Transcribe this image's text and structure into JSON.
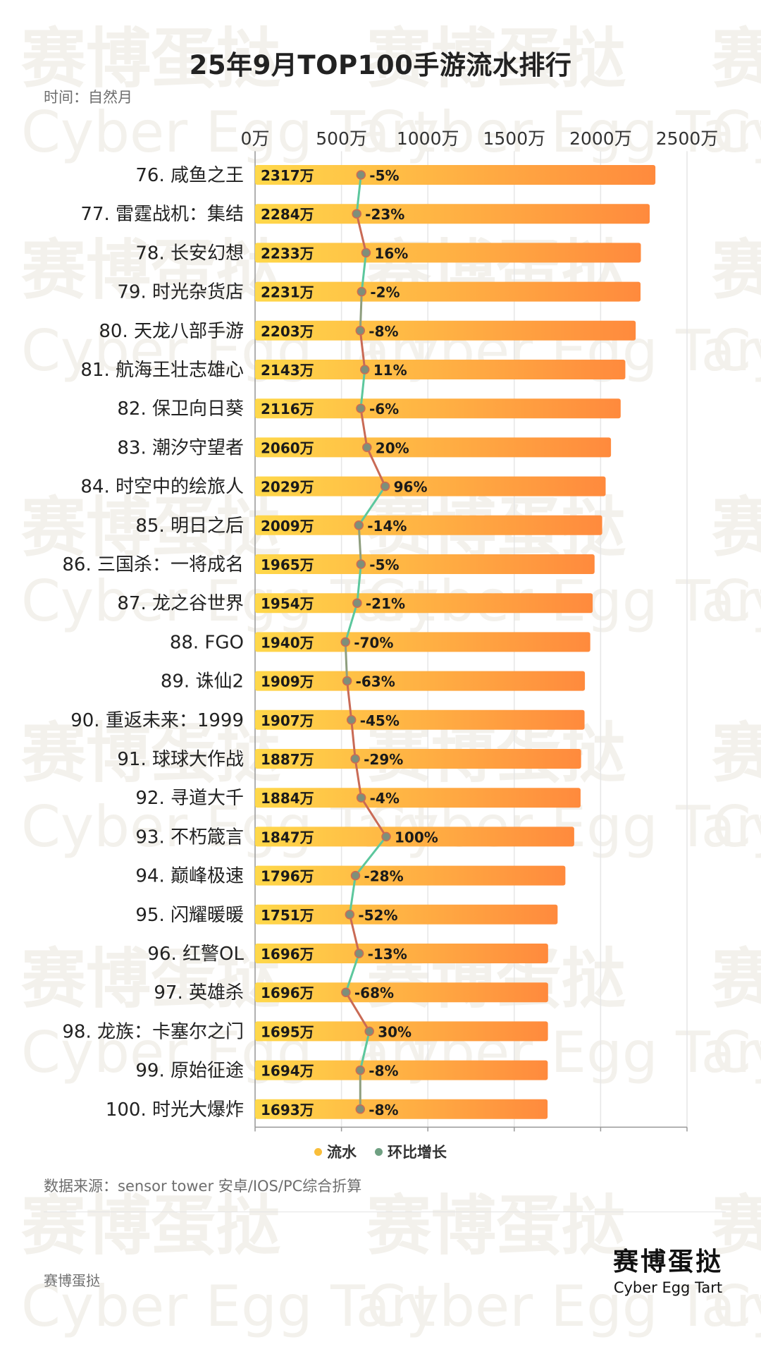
{
  "title": "25年9月TOP100手游流水排行",
  "subtitle": "时间：自然月",
  "source": "数据来源：sensor tower 安卓/IOS/PC综合折算",
  "brand": {
    "left_text": "赛博蛋挞",
    "logo_cn": "赛博蛋挞",
    "logo_en": "Cyber Egg Tart"
  },
  "watermark": {
    "cn": "赛博蛋挞",
    "en": "Cyber Egg Tart"
  },
  "legend": [
    {
      "label": "流水",
      "color": "#F9BE3A"
    },
    {
      "label": "环比增长",
      "color": "#6FA082"
    }
  ],
  "colors": {
    "bar_start": "#FFD84A",
    "bar_end": "#FF8A3D",
    "line_up": "#C96A55",
    "line_down": "#5CC79D",
    "line_flat": "#8E9E7E",
    "dot": "#7E8F7A"
  },
  "chart_data": {
    "type": "bar",
    "orientation": "horizontal",
    "x_unit": "万",
    "xlim": [
      0,
      2500
    ],
    "x_ticks": [
      0,
      500,
      1000,
      1500,
      2000,
      2500
    ],
    "x_tick_labels": [
      "0万",
      "500万",
      "1000万",
      "1500万",
      "2000万",
      "2500万"
    ],
    "categories": [
      "76. 咸鱼之王",
      "77. 雷霆战机：集结",
      "78. 长安幻想",
      "79. 时光杂货店",
      "80. 天龙八部手游",
      "81. 航海王壮志雄心",
      "82. 保卫向日葵",
      "83. 潮汐守望者",
      "84. 时空中的绘旅人",
      "85. 明日之后",
      "86. 三国杀：一将成名",
      "87. 龙之谷世界",
      "88. FGO",
      "89. 诛仙2",
      "90. 重返未来：1999",
      "91. 球球大作战",
      "92. 寻道大千",
      "93. 不朽箴言",
      "94. 巅峰极速",
      "95. 闪耀暖暖",
      "96. 红警OL",
      "97. 英雄杀",
      "98. 龙族：卡塞尔之门",
      "99. 原始征途",
      "100. 时光大爆炸"
    ],
    "series": [
      {
        "name": "流水",
        "values": [
          2317,
          2284,
          2233,
          2231,
          2203,
          2143,
          2116,
          2060,
          2029,
          2009,
          1965,
          1954,
          1940,
          1909,
          1907,
          1887,
          1884,
          1847,
          1796,
          1751,
          1696,
          1696,
          1695,
          1694,
          1693
        ],
        "labels": [
          "2317万",
          "2284万",
          "2233万",
          "2231万",
          "2203万",
          "2143万",
          "2116万",
          "2060万",
          "2029万",
          "2009万",
          "1965万",
          "1954万",
          "1940万",
          "1909万",
          "1907万",
          "1887万",
          "1884万",
          "1847万",
          "1796万",
          "1751万",
          "1696万",
          "1696万",
          "1695万",
          "1694万",
          "1693万"
        ]
      },
      {
        "name": "环比增长",
        "values": [
          -5,
          -23,
          16,
          -2,
          -8,
          11,
          -6,
          20,
          96,
          -14,
          -5,
          -21,
          -70,
          -63,
          -45,
          -29,
          -4,
          100,
          -28,
          -52,
          -13,
          -68,
          30,
          -8,
          -8
        ],
        "labels": [
          "-5%",
          "-23%",
          "16%",
          "-2%",
          "-8%",
          "11%",
          "-6%",
          "20%",
          "96%",
          "-14%",
          "-5%",
          "-21%",
          "-70%",
          "-63%",
          "-45%",
          "-29%",
          "-4%",
          "100%",
          "-28%",
          "-52%",
          "-13%",
          "-68%",
          "30%",
          "-8%",
          "-8%"
        ]
      }
    ]
  }
}
